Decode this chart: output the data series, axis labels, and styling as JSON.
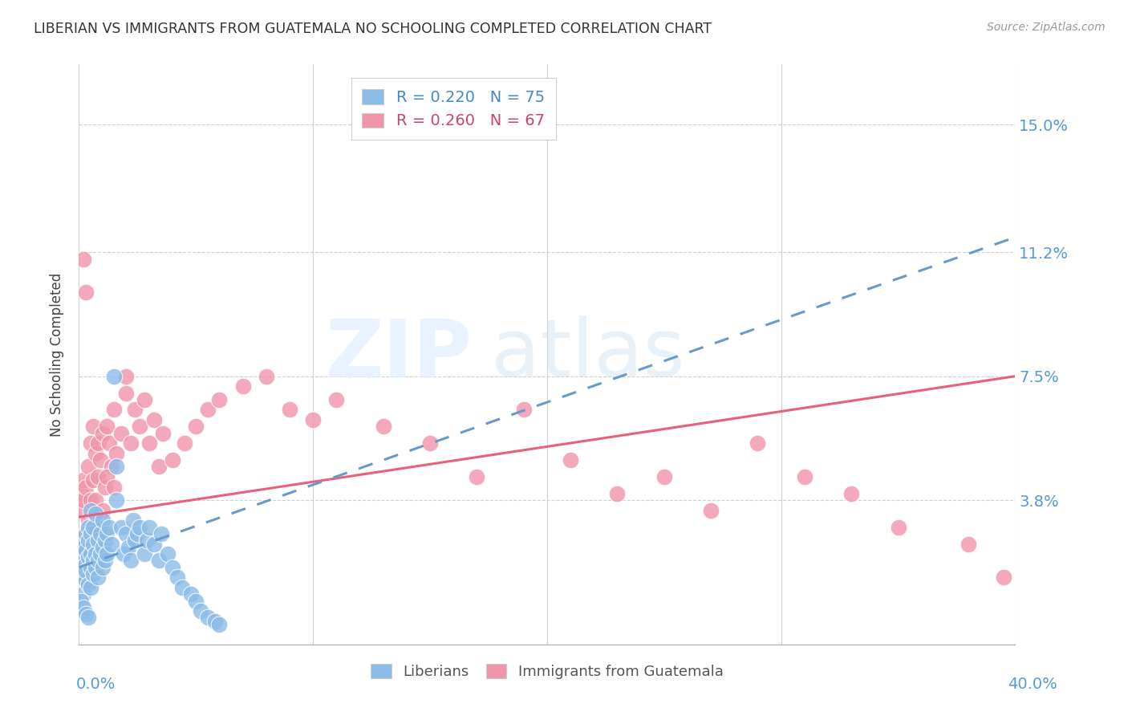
{
  "title": "LIBERIAN VS IMMIGRANTS FROM GUATEMALA NO SCHOOLING COMPLETED CORRELATION CHART",
  "source": "Source: ZipAtlas.com",
  "ylabel": "No Schooling Completed",
  "ytick_labels": [
    "15.0%",
    "11.2%",
    "7.5%",
    "3.8%"
  ],
  "ytick_values": [
    0.15,
    0.112,
    0.075,
    0.038
  ],
  "xlim": [
    0.0,
    0.4
  ],
  "ylim": [
    -0.005,
    0.168
  ],
  "liberian_color": "#8bbce8",
  "guatemala_color": "#f094aa",
  "liberian_line_color": "#6699cc",
  "guatemala_line_color": "#e8607a",
  "liberian_trend": [
    0.0,
    0.06,
    0.018,
    0.034
  ],
  "guatemala_trend": [
    0.0,
    0.4,
    0.033,
    0.075
  ],
  "liberian_x": [
    0.001,
    0.001,
    0.001,
    0.001,
    0.002,
    0.002,
    0.002,
    0.002,
    0.003,
    0.003,
    0.003,
    0.003,
    0.003,
    0.004,
    0.004,
    0.004,
    0.004,
    0.005,
    0.005,
    0.005,
    0.005,
    0.005,
    0.006,
    0.006,
    0.006,
    0.006,
    0.007,
    0.007,
    0.007,
    0.008,
    0.008,
    0.008,
    0.009,
    0.009,
    0.01,
    0.01,
    0.01,
    0.011,
    0.011,
    0.012,
    0.012,
    0.013,
    0.014,
    0.015,
    0.016,
    0.016,
    0.018,
    0.019,
    0.02,
    0.021,
    0.022,
    0.023,
    0.024,
    0.025,
    0.026,
    0.028,
    0.029,
    0.03,
    0.032,
    0.034,
    0.035,
    0.038,
    0.04,
    0.042,
    0.044,
    0.048,
    0.05,
    0.052,
    0.055,
    0.058,
    0.06,
    0.001,
    0.002,
    0.003,
    0.004
  ],
  "liberian_y": [
    0.018,
    0.022,
    0.025,
    0.015,
    0.02,
    0.016,
    0.024,
    0.01,
    0.019,
    0.023,
    0.028,
    0.014,
    0.017,
    0.021,
    0.026,
    0.013,
    0.03,
    0.018,
    0.022,
    0.012,
    0.028,
    0.035,
    0.02,
    0.025,
    0.016,
    0.03,
    0.022,
    0.018,
    0.034,
    0.02,
    0.026,
    0.015,
    0.028,
    0.022,
    0.024,
    0.018,
    0.032,
    0.02,
    0.026,
    0.022,
    0.028,
    0.03,
    0.025,
    0.075,
    0.038,
    0.048,
    0.03,
    0.022,
    0.028,
    0.024,
    0.02,
    0.032,
    0.026,
    0.028,
    0.03,
    0.022,
    0.026,
    0.03,
    0.025,
    0.02,
    0.028,
    0.022,
    0.018,
    0.015,
    0.012,
    0.01,
    0.008,
    0.005,
    0.003,
    0.002,
    0.001,
    0.008,
    0.006,
    0.004,
    0.003
  ],
  "guatemala_x": [
    0.001,
    0.001,
    0.002,
    0.002,
    0.003,
    0.003,
    0.004,
    0.004,
    0.005,
    0.005,
    0.006,
    0.006,
    0.007,
    0.007,
    0.008,
    0.008,
    0.009,
    0.01,
    0.011,
    0.012,
    0.013,
    0.014,
    0.015,
    0.016,
    0.018,
    0.02,
    0.022,
    0.024,
    0.026,
    0.028,
    0.03,
    0.032,
    0.034,
    0.036,
    0.04,
    0.045,
    0.05,
    0.055,
    0.06,
    0.07,
    0.08,
    0.09,
    0.1,
    0.11,
    0.13,
    0.15,
    0.17,
    0.19,
    0.21,
    0.23,
    0.25,
    0.27,
    0.29,
    0.31,
    0.33,
    0.35,
    0.38,
    0.395,
    0.002,
    0.003,
    0.005,
    0.006,
    0.008,
    0.01,
    0.012,
    0.015,
    0.02
  ],
  "guatemala_y": [
    0.035,
    0.04,
    0.038,
    0.044,
    0.042,
    0.028,
    0.048,
    0.032,
    0.055,
    0.038,
    0.044,
    0.06,
    0.052,
    0.038,
    0.055,
    0.045,
    0.05,
    0.058,
    0.042,
    0.06,
    0.055,
    0.048,
    0.065,
    0.052,
    0.058,
    0.07,
    0.055,
    0.065,
    0.06,
    0.068,
    0.055,
    0.062,
    0.048,
    0.058,
    0.05,
    0.055,
    0.06,
    0.065,
    0.068,
    0.072,
    0.075,
    0.065,
    0.062,
    0.068,
    0.06,
    0.055,
    0.045,
    0.065,
    0.05,
    0.04,
    0.045,
    0.035,
    0.055,
    0.045,
    0.04,
    0.03,
    0.025,
    0.015,
    0.11,
    0.1,
    0.025,
    0.02,
    0.03,
    0.035,
    0.045,
    0.042,
    0.075
  ]
}
